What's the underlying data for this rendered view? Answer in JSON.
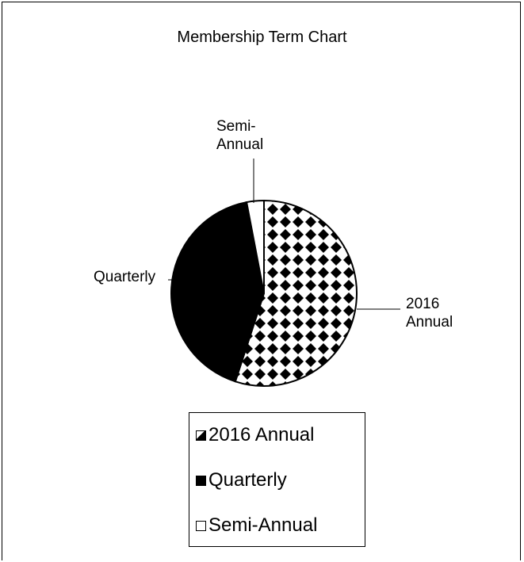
{
  "chart_data": {
    "type": "pie",
    "title": "Membership Term Chart",
    "categories": [
      "2016 Annual",
      "Quarterly",
      "Semi-Annual"
    ],
    "values": [
      55,
      42,
      3
    ],
    "colors": [
      "#000000",
      "#000000",
      "#ffffff"
    ],
    "patterns": [
      "diamond",
      "solid",
      "solid"
    ],
    "legend": "bottom"
  }
}
